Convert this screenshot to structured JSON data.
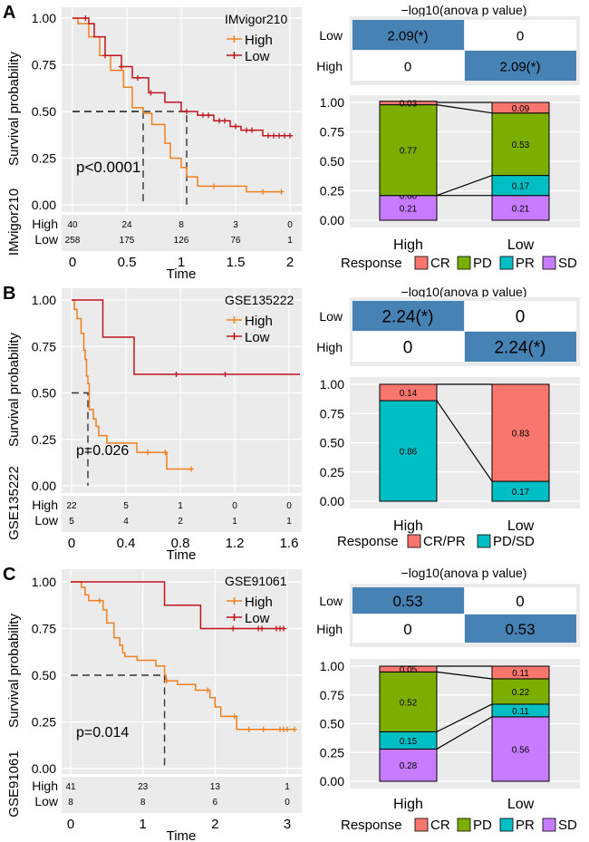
{
  "colors": {
    "High": "#F07F1E",
    "Low": "#C0141C",
    "panel_bg": "#EBEBEB",
    "heat_fill": "#4682B4",
    "CR": "#F8766D",
    "PD": "#7CAE00",
    "PR": "#00BFC4",
    "SD": "#C77CFF",
    "CR/PR": "#F8766D",
    "PD/SD": "#00BFC4"
  },
  "chart_data": [
    {
      "panel": "A",
      "type": "line",
      "subtype": "kaplan-meier",
      "legend_title": "IMvigor210",
      "xlabel": "Time",
      "ylabel": "Survival probability",
      "risk_table_label": "IMvigor210",
      "xlim": [
        0,
        2
      ],
      "ylim": [
        0,
        1
      ],
      "xticks": [
        "0",
        "0.5",
        "1",
        "1.5",
        "2"
      ],
      "yticks": [
        "0.00",
        "0.25",
        "0.50",
        "0.75",
        "1.00"
      ],
      "pvalue": "p<0.0001",
      "median": {
        "High": 0.65,
        "Low": 1.05
      },
      "series": [
        {
          "name": "High",
          "steps": [
            [
              0,
              1
            ],
            [
              0.05,
              0.97
            ],
            [
              0.15,
              0.9
            ],
            [
              0.25,
              0.8
            ],
            [
              0.35,
              0.72
            ],
            [
              0.47,
              0.63
            ],
            [
              0.55,
              0.52
            ],
            [
              0.65,
              0.49
            ],
            [
              0.73,
              0.43
            ],
            [
              0.85,
              0.33
            ],
            [
              0.9,
              0.25
            ],
            [
              1.0,
              0.2
            ],
            [
              1.05,
              0.15
            ],
            [
              1.15,
              0.1
            ],
            [
              1.6,
              0.07
            ],
            [
              1.93,
              0.07
            ]
          ],
          "censor": [
            1.3,
            1.75,
            1.92
          ]
        },
        {
          "name": "Low",
          "steps": [
            [
              0,
              1
            ],
            [
              0.15,
              0.97
            ],
            [
              0.2,
              0.9
            ],
            [
              0.3,
              0.8
            ],
            [
              0.45,
              0.74
            ],
            [
              0.55,
              0.68
            ],
            [
              0.7,
              0.6
            ],
            [
              0.85,
              0.55
            ],
            [
              1.0,
              0.5
            ],
            [
              1.15,
              0.48
            ],
            [
              1.3,
              0.45
            ],
            [
              1.45,
              0.42
            ],
            [
              1.55,
              0.4
            ],
            [
              1.75,
              0.37
            ],
            [
              2.02,
              0.37
            ]
          ],
          "censor": [
            0.12,
            0.3,
            0.45,
            0.6,
            0.72,
            1.05,
            1.2,
            1.25,
            1.35,
            1.4,
            1.5,
            1.6,
            1.65,
            1.8,
            1.85,
            1.9,
            1.95,
            2.0
          ]
        }
      ],
      "risk_table": {
        "times": [
          0,
          0.5,
          1,
          1.5,
          2
        ],
        "High": [
          "40",
          "24",
          "8",
          "3",
          "0"
        ],
        "Low": [
          "258",
          "175",
          "126",
          "76",
          "1"
        ]
      },
      "heatmap": {
        "title": "−log10(anova p value)",
        "rows": [
          "Low",
          "High"
        ],
        "cells": [
          [
            "2.09(*)",
            "0"
          ],
          [
            "0",
            "2.09(*)"
          ]
        ],
        "values": [
          [
            2.09,
            0
          ],
          [
            0,
            2.09
          ]
        ]
      },
      "bars": {
        "categories": [
          "High",
          "Low"
        ],
        "yticks": [
          "0.00",
          "0.25",
          "0.50",
          "0.75",
          "1.00"
        ],
        "legend_title": "Response",
        "levels": [
          "CR",
          "PD",
          "PR",
          "SD"
        ],
        "values": {
          "High": {
            "CR": 0.03,
            "PD": 0.77,
            "PR": 0.0,
            "SD": 0.21
          },
          "Low": {
            "CR": 0.09,
            "PD": 0.53,
            "PR": 0.17,
            "SD": 0.21
          }
        },
        "labels": {
          "High": {
            "CR": "0.03",
            "PD": "0.77",
            "PR": "0.00",
            "SD": "0.21"
          },
          "Low": {
            "CR": "0.09",
            "PD": "0.53",
            "PR": "0.17",
            "SD": "0.21"
          }
        }
      }
    },
    {
      "panel": "B",
      "type": "line",
      "subtype": "kaplan-meier",
      "legend_title": "GSE135222",
      "xlabel": "Time",
      "ylabel": "Survival probability",
      "risk_table_label": "GSE135222",
      "xlim": [
        0,
        1.68
      ],
      "ylim": [
        0,
        1
      ],
      "xticks": [
        "0",
        "0.4",
        "0.8",
        "1.2",
        "1.6"
      ],
      "yticks": [
        "0.00",
        "0.25",
        "0.50",
        "0.75",
        "1.00"
      ],
      "pvalue": "p=0.026",
      "median": {
        "High": 0.12
      },
      "series": [
        {
          "name": "High",
          "steps": [
            [
              0,
              1
            ],
            [
              0.02,
              0.95
            ],
            [
              0.04,
              0.9
            ],
            [
              0.07,
              0.82
            ],
            [
              0.09,
              0.73
            ],
            [
              0.1,
              0.68
            ],
            [
              0.11,
              0.59
            ],
            [
              0.12,
              0.55
            ],
            [
              0.13,
              0.41
            ],
            [
              0.16,
              0.36
            ],
            [
              0.18,
              0.32
            ],
            [
              0.2,
              0.27
            ],
            [
              0.26,
              0.23
            ],
            [
              0.48,
              0.18
            ],
            [
              0.7,
              0.09
            ],
            [
              0.88,
              0.09
            ]
          ],
          "censor": [
            0.56,
            0.69,
            0.88
          ]
        },
        {
          "name": "Low",
          "steps": [
            [
              0,
              1
            ],
            [
              0.23,
              0.8
            ],
            [
              0.46,
              0.6
            ],
            [
              1.68,
              0.6
            ]
          ],
          "censor": [
            0.77,
            1.13
          ]
        }
      ],
      "risk_table": {
        "times": [
          0,
          0.4,
          0.8,
          1.2,
          1.6
        ],
        "High": [
          "22",
          "5",
          "1",
          "0",
          "0"
        ],
        "Low": [
          "5",
          "4",
          "2",
          "1",
          "1"
        ]
      },
      "heatmap": {
        "title": "−log10(anova p value)",
        "rows": [
          "Low",
          "High"
        ],
        "cells": [
          [
            "2.24(*)",
            "0"
          ],
          [
            "0",
            "2.24(*)"
          ]
        ],
        "values": [
          [
            2.24,
            0
          ],
          [
            0,
            2.24
          ]
        ]
      },
      "bars": {
        "categories": [
          "High",
          "Low"
        ],
        "yticks": [
          "0.00",
          "0.25",
          "0.50",
          "0.75",
          "1.00"
        ],
        "legend_title": "Response",
        "levels": [
          "CR/PR",
          "PD/SD"
        ],
        "values": {
          "High": {
            "CR/PR": 0.14,
            "PD/SD": 0.86
          },
          "Low": {
            "CR/PR": 0.83,
            "PD/SD": 0.17
          }
        },
        "labels": {
          "High": {
            "CR/PR": "0.14",
            "PD/SD": "0.86"
          },
          "Low": {
            "CR/PR": "0.83",
            "PD/SD": "0.17"
          }
        }
      }
    },
    {
      "panel": "C",
      "type": "line",
      "subtype": "kaplan-meier",
      "legend_title": "GSE91061",
      "xlabel": "Time",
      "ylabel": "Survival probability",
      "risk_table_label": "GSE91061",
      "xlim": [
        0,
        3.1
      ],
      "ylim": [
        0,
        1
      ],
      "xticks": [
        "0",
        "1",
        "2",
        "3"
      ],
      "yticks": [
        "0.00",
        "0.25",
        "0.50",
        "0.75",
        "1.00"
      ],
      "pvalue": "p=0.014",
      "median": {
        "High": 1.3
      },
      "series": [
        {
          "name": "High",
          "steps": [
            [
              0,
              1
            ],
            [
              0.15,
              0.97
            ],
            [
              0.2,
              0.93
            ],
            [
              0.25,
              0.9
            ],
            [
              0.45,
              0.85
            ],
            [
              0.5,
              0.78
            ],
            [
              0.6,
              0.7
            ],
            [
              0.68,
              0.66
            ],
            [
              0.72,
              0.62
            ],
            [
              0.75,
              0.6
            ],
            [
              0.92,
              0.58
            ],
            [
              1.18,
              0.55
            ],
            [
              1.3,
              0.5
            ],
            [
              1.32,
              0.47
            ],
            [
              1.48,
              0.45
            ],
            [
              1.73,
              0.42
            ],
            [
              1.93,
              0.38
            ],
            [
              2.0,
              0.33
            ],
            [
              2.08,
              0.28
            ],
            [
              2.3,
              0.21
            ],
            [
              3.1,
              0.21
            ]
          ],
          "censor": [
            0.4,
            1.33,
            1.9,
            2.27,
            2.47,
            2.67,
            2.9,
            2.95,
            3.0,
            3.1
          ]
        },
        {
          "name": "Low",
          "steps": [
            [
              0,
              1
            ],
            [
              1.3,
              0.875
            ],
            [
              1.8,
              0.75
            ],
            [
              2.95,
              0.75
            ]
          ],
          "censor": [
            2.25,
            2.6,
            2.65,
            2.85,
            2.9,
            2.95
          ]
        }
      ],
      "risk_table": {
        "times": [
          0,
          1,
          2,
          3
        ],
        "High": [
          "41",
          "23",
          "13",
          "1"
        ],
        "Low": [
          "8",
          "8",
          "6",
          "0"
        ]
      },
      "heatmap": {
        "title": "−log10(anova p value)",
        "rows": [
          "Low",
          "High"
        ],
        "cells": [
          [
            "0.53",
            "0"
          ],
          [
            "0",
            "0.53"
          ]
        ],
        "values": [
          [
            0.53,
            0
          ],
          [
            0,
            0.53
          ]
        ]
      },
      "bars": {
        "categories": [
          "High",
          "Low"
        ],
        "yticks": [
          "0.00",
          "0.25",
          "0.50",
          "0.75",
          "1.00"
        ],
        "legend_title": "Response",
        "levels": [
          "CR",
          "PD",
          "PR",
          "SD"
        ],
        "values": {
          "High": {
            "CR": 0.05,
            "PD": 0.52,
            "PR": 0.15,
            "SD": 0.28
          },
          "Low": {
            "CR": 0.11,
            "PD": 0.22,
            "PR": 0.11,
            "SD": 0.56
          }
        },
        "labels": {
          "High": {
            "CR": "0.05",
            "PD": "0.52",
            "PR": "0.15",
            "SD": "0.28"
          },
          "Low": {
            "CR": "0.11",
            "PD": "0.22",
            "PR": "0.11",
            "SD": "0.56"
          }
        }
      }
    }
  ]
}
